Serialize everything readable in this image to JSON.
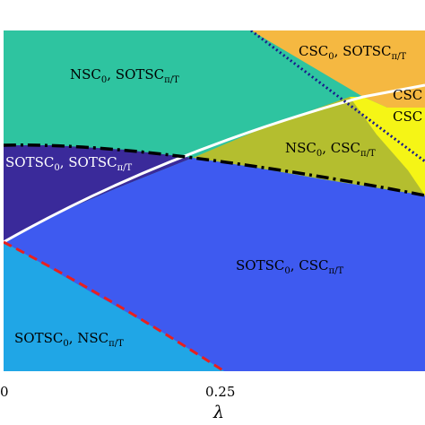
{
  "chart_data": {
    "type": "heatmap",
    "title": "",
    "xlabel": "λ",
    "ylabel": "",
    "x_ticks": [
      "0",
      "0.25"
    ],
    "grid": false,
    "regions": [
      {
        "id": "nsc-sotsc",
        "main1": "NSC",
        "sub1": "0",
        "main2": ", SOTSC",
        "sub2": "π/T",
        "color": "#2ec4a0"
      },
      {
        "id": "csc-sotsc",
        "main1": "CSC",
        "sub1": "0",
        "main2": ", SOTSC",
        "sub2": "π/T",
        "color": "#f5b841"
      },
      {
        "id": "csc-csc",
        "line1": "CSC",
        "line2": "CSC",
        "color": "#f5f516"
      },
      {
        "id": "nsc-csc",
        "main1": "NSC",
        "sub1": "0",
        "main2": ", CSC",
        "sub2": "π/T",
        "color": "#b4be2f"
      },
      {
        "id": "sotsc-sotsc",
        "main1": "SOTSC",
        "sub1": "0",
        "main2": ", SOTSC",
        "sub2": "π/T",
        "color": "#3a2a9a"
      },
      {
        "id": "sotsc-csc",
        "main1": "SOTSC",
        "sub1": "0",
        "main2": ", CSC",
        "sub2": "π/T",
        "color": "#3e5af0"
      },
      {
        "id": "sotsc-nsc",
        "main1": "SOTSC",
        "sub1": "0",
        "main2": ", NSC",
        "sub2": "π/T",
        "color": "#20a6e6"
      }
    ],
    "boundaries": [
      {
        "id": "white-solid",
        "color": "#ffffff",
        "style": "solid"
      },
      {
        "id": "black-dashdot",
        "color": "#000000",
        "style": "dash-dot"
      },
      {
        "id": "red-dashed",
        "color": "#e8201e",
        "style": "dashed"
      },
      {
        "id": "navy-dotted",
        "color": "#1a1a8c",
        "style": "dotted"
      }
    ]
  }
}
